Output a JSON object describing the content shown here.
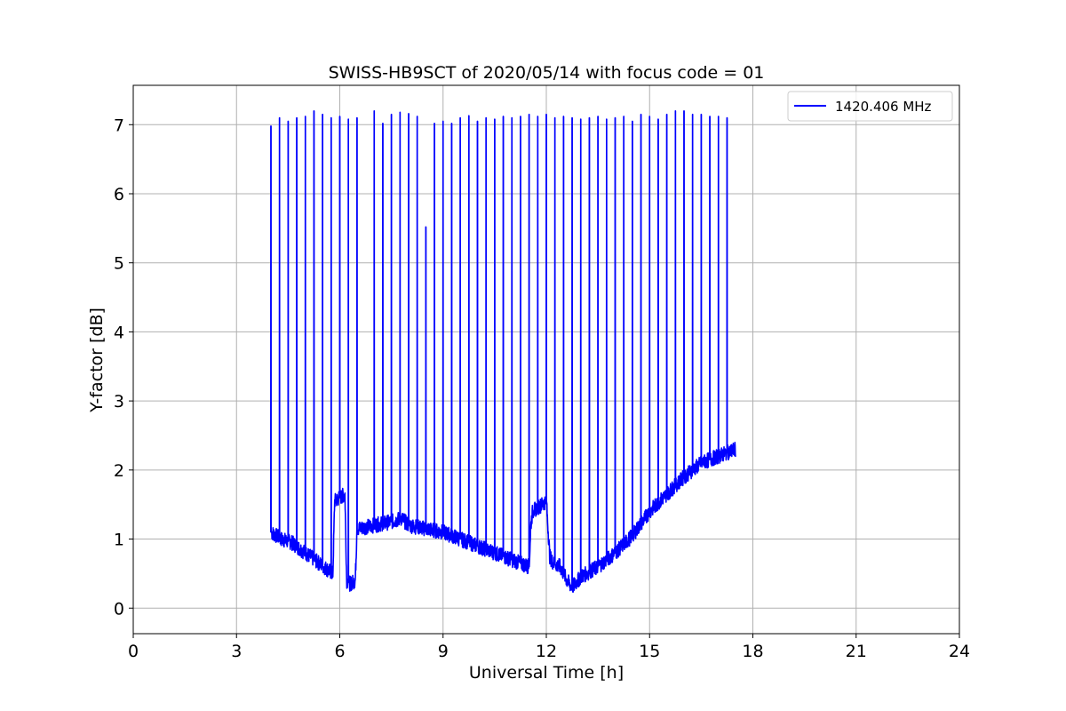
{
  "chart_data": {
    "type": "line",
    "title": "SWISS-HB9SCT of 2020/05/14 with focus code = 01",
    "xlabel": "Universal Time [h]",
    "ylabel": "Y-factor [dB]",
    "xlim": [
      0,
      24
    ],
    "ylim": [
      -0.37,
      7.57
    ],
    "x_ticks": [
      0,
      3,
      6,
      9,
      12,
      15,
      18,
      21,
      24
    ],
    "x_tick_labels": [
      "0",
      "3",
      "6",
      "9",
      "12",
      "15",
      "18",
      "21",
      "24"
    ],
    "y_ticks": [
      0,
      1,
      2,
      3,
      4,
      5,
      6,
      7
    ],
    "y_tick_labels": [
      "0",
      "1",
      "2",
      "3",
      "4",
      "5",
      "6",
      "7"
    ],
    "grid": true,
    "legend_position": "top-right",
    "series": [
      {
        "name": "1420.406 MHz",
        "color": "#0000ff",
        "baseline": {
          "x": [
            4.0,
            4.3,
            4.6,
            5.0,
            5.4,
            5.8,
            5.85,
            6.0,
            6.15,
            6.2,
            6.3,
            6.45,
            6.5,
            7.0,
            7.5,
            7.8,
            8.0,
            8.5,
            9.0,
            9.5,
            10.0,
            10.5,
            11.0,
            11.5,
            11.55,
            11.6,
            12.0,
            12.1,
            12.2,
            12.4,
            12.6,
            12.75,
            13.0,
            13.5,
            14.0,
            14.5,
            15.0,
            15.5,
            16.0,
            16.5,
            17.0,
            17.5
          ],
          "y": [
            1.1,
            1.0,
            0.95,
            0.8,
            0.65,
            0.5,
            1.55,
            1.6,
            1.65,
            0.4,
            0.35,
            0.4,
            1.15,
            1.2,
            1.25,
            1.3,
            1.2,
            1.15,
            1.1,
            1.0,
            0.9,
            0.8,
            0.7,
            0.6,
            1.2,
            1.4,
            1.55,
            0.75,
            0.65,
            0.6,
            0.4,
            0.3,
            0.45,
            0.6,
            0.8,
            1.05,
            1.4,
            1.65,
            1.9,
            2.1,
            2.2,
            2.3
          ]
        },
        "spikes": {
          "x": [
            4.0,
            4.25,
            4.5,
            4.75,
            5.0,
            5.25,
            5.5,
            5.75,
            6.0,
            6.25,
            6.5,
            7.0,
            7.25,
            7.5,
            7.75,
            8.0,
            8.25,
            8.5,
            8.75,
            9.0,
            9.25,
            9.5,
            9.75,
            10.0,
            10.25,
            10.5,
            10.75,
            11.0,
            11.25,
            11.5,
            11.75,
            12.0,
            12.25,
            12.5,
            12.75,
            13.0,
            13.25,
            13.5,
            13.75,
            14.0,
            14.25,
            14.5,
            14.75,
            15.0,
            15.25,
            15.5,
            15.75,
            16.0,
            16.25,
            16.5,
            16.75,
            17.0,
            17.25
          ],
          "y": [
            6.98,
            7.1,
            7.05,
            7.1,
            7.12,
            7.2,
            7.15,
            7.1,
            7.12,
            7.08,
            7.1,
            7.2,
            7.02,
            7.15,
            7.18,
            7.16,
            7.12,
            5.52,
            7.02,
            7.05,
            7.02,
            7.1,
            7.13,
            7.05,
            7.1,
            7.08,
            7.12,
            7.1,
            7.12,
            7.15,
            7.12,
            7.15,
            7.1,
            7.12,
            7.1,
            7.08,
            7.1,
            7.12,
            7.08,
            7.1,
            7.12,
            7.05,
            7.15,
            7.12,
            7.08,
            7.15,
            7.2,
            7.2,
            7.15,
            7.15,
            7.12,
            7.12,
            7.1
          ]
        }
      }
    ]
  }
}
